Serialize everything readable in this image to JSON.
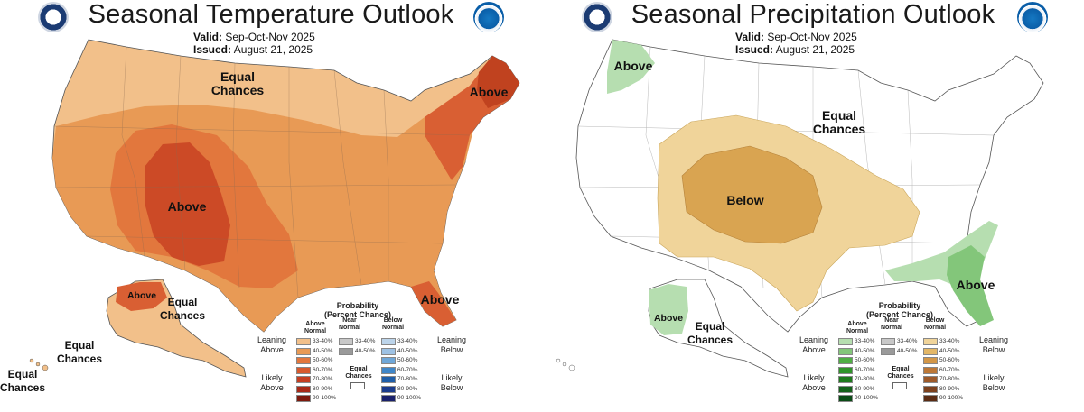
{
  "temperature": {
    "title": "Seasonal Temperature Outlook",
    "valid_label": "Valid:",
    "valid_value": "Sep-Oct-Nov 2025",
    "issued_label": "Issued:",
    "issued_value": "August 21, 2025",
    "labels": {
      "equal_north": "Equal Chances",
      "above_northeast": "Above",
      "above_southwest": "Above",
      "above_florida": "Above",
      "above_alaska": "Above",
      "equal_alaska_e": "Equal Chances",
      "equal_alaska_w": "Equal Chances",
      "equal_hawaii": "Equal Chances"
    }
  },
  "precipitation": {
    "title": "Seasonal Precipitation Outlook",
    "valid_label": "Valid:",
    "valid_value": "Sep-Oct-Nov 2025",
    "issued_label": "Issued:",
    "issued_value": "August 21, 2025",
    "labels": {
      "above_northwest": "Above",
      "equal_center": "Equal Chances",
      "below_center": "Below",
      "above_southeast": "Above",
      "above_alaska": "Above",
      "equal_alaska": "Equal Chances"
    }
  },
  "legend": {
    "title": "Probability (Percent Chance)",
    "col_above": "Above Normal",
    "col_near": "Near Normal",
    "col_below": "Below Normal",
    "leaning_above": "Leaning Above",
    "likely_above": "Likely Above",
    "leaning_below": "Leaning Below",
    "likely_below": "Likely Below",
    "equal_chances": "Equal Chances",
    "rows": [
      "33-40%",
      "40-50%",
      "50-60%",
      "60-70%",
      "70-80%",
      "80-90%",
      "90-100%"
    ],
    "near_rows": [
      "33-40%",
      "40-50%"
    ],
    "temp_above_colors": [
      "#f2c08a",
      "#e89a55",
      "#e2773d",
      "#d75a2e",
      "#c53f22",
      "#a82a18",
      "#7d1a0e"
    ],
    "temp_near_colors": [
      "#c8c8c8",
      "#9a9a9a"
    ],
    "temp_below_colors": [
      "#bcd4ea",
      "#9ec2e4",
      "#6fa7d8",
      "#3f86c8",
      "#1f5ea8",
      "#1b3c8c",
      "#1a216b"
    ],
    "precip_above_colors": [
      "#b6deb0",
      "#83c67a",
      "#4fae44",
      "#2f9429",
      "#1e7a1c",
      "#14611a",
      "#0b4b16"
    ],
    "precip_near_colors": [
      "#c8c8c8",
      "#9a9a9a"
    ],
    "precip_below_colors": [
      "#f0d49a",
      "#e3b767",
      "#d39748",
      "#bd7837",
      "#9e5a2a",
      "#7c411e",
      "#5a2c14"
    ]
  }
}
